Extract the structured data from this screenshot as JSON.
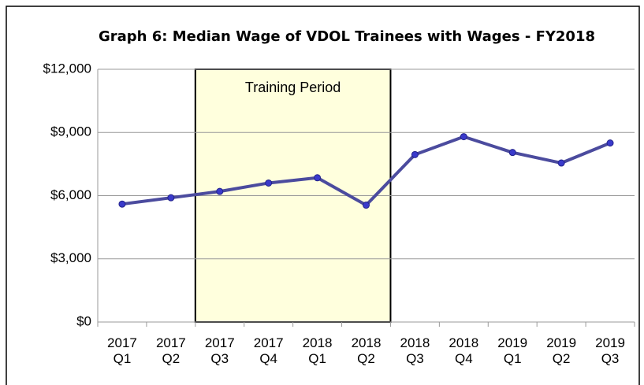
{
  "chart_data": {
    "type": "line",
    "title": "Graph 6: Median Wage of VDOL Trainees with Wages - FY2018",
    "categories": [
      "2017 Q1",
      "2017 Q2",
      "2017 Q3",
      "2017 Q4",
      "2018 Q1",
      "2018 Q2",
      "2018 Q3",
      "2018 Q4",
      "2019 Q1",
      "2019 Q2",
      "2019 Q3"
    ],
    "series": [
      {
        "name": "Median Wage",
        "color": "#4b4b9e",
        "marker_color": "#3a3acb",
        "values": [
          5600,
          5900,
          6200,
          6600,
          6850,
          5550,
          7950,
          8800,
          8050,
          7550,
          8500
        ]
      }
    ],
    "ylim": [
      0,
      12000
    ],
    "yticks": [
      {
        "value": 0,
        "label": "$0"
      },
      {
        "value": 3000,
        "label": "$3,000"
      },
      {
        "value": 6000,
        "label": "$6,000"
      },
      {
        "value": 9000,
        "label": "$9,000"
      },
      {
        "value": 12000,
        "label": "$12,000"
      }
    ],
    "grid": true,
    "annotations": [
      {
        "text": "Training Period",
        "start": "2017 Q3",
        "end": "2018 Q2",
        "color": "#ffffdd"
      }
    ]
  }
}
